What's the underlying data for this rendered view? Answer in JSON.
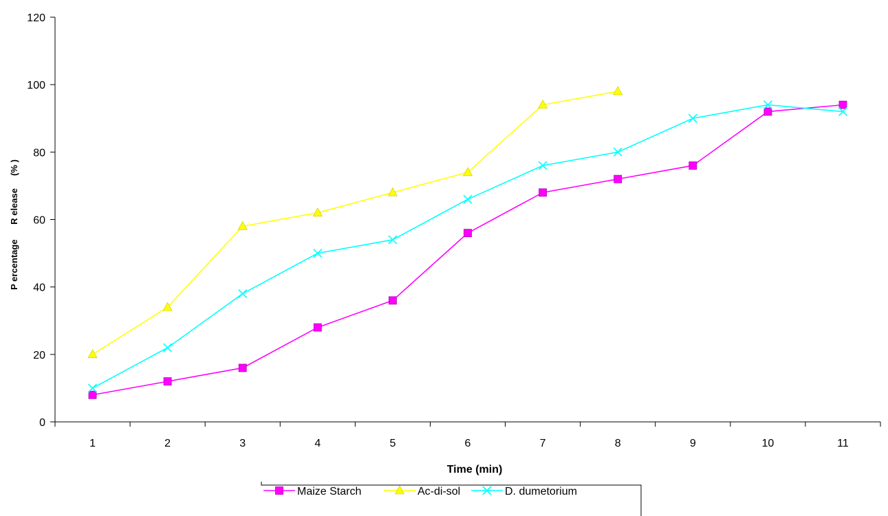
{
  "chart_data": {
    "type": "line",
    "title": "",
    "xlabel": "Time (min)",
    "ylabel": "P ercentage      R elease     (% )",
    "categories": [
      "1",
      "2",
      "3",
      "4",
      "5",
      "6",
      "7",
      "8",
      "9",
      "10",
      "11"
    ],
    "ylim": [
      0,
      120
    ],
    "yticks": [
      0,
      20,
      40,
      60,
      80,
      100,
      120
    ],
    "grid": false,
    "legend_position": "bottom",
    "series": [
      {
        "name": "Maize Starch",
        "color": "#ff00ff",
        "marker": "square",
        "values": [
          8,
          12,
          16,
          28,
          36,
          56,
          68,
          72,
          76,
          92,
          94
        ]
      },
      {
        "name": "Ac-di-sol",
        "color": "#ffff00",
        "marker": "triangle",
        "values": [
          20,
          34,
          58,
          62,
          68,
          74,
          94,
          98,
          null,
          null,
          null
        ]
      },
      {
        "name": "D. dumetorium",
        "color": "#00ffff",
        "marker": "x",
        "values": [
          10,
          22,
          38,
          50,
          54,
          66,
          76,
          80,
          90,
          94,
          92
        ]
      }
    ]
  }
}
